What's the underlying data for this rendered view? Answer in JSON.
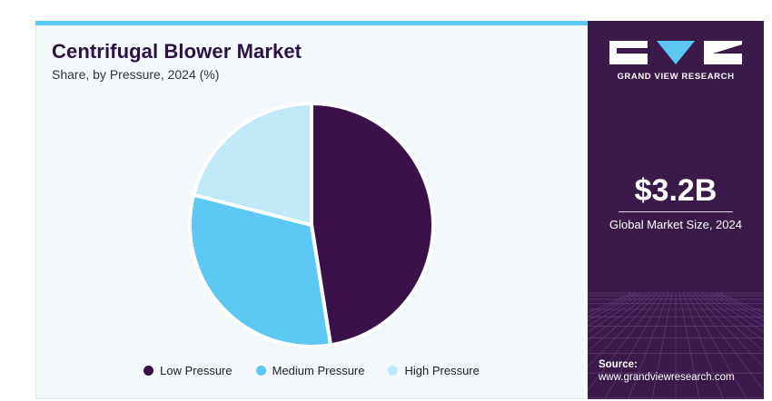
{
  "header": {
    "title": "Centrifugal Blower Market",
    "subtitle": "Share, by Pressure, 2024 (%)"
  },
  "chart_data": {
    "type": "pie",
    "title": "Centrifugal Blower Market",
    "subtitle": "Share, by Pressure, 2024 (%)",
    "categories": [
      "Low Pressure",
      "Medium Pressure",
      "High Pressure"
    ],
    "values": [
      47.5,
      31.5,
      21.0
    ],
    "colors": [
      "#3a1149",
      "#5ec8f4",
      "#bfe8f9"
    ],
    "start_angle": "top, clockwise",
    "legend_position": "bottom"
  },
  "sidebar": {
    "brand": "GRAND VIEW RESEARCH",
    "market_size": "$3.2B",
    "market_size_label": "Global Market Size, 2024",
    "source_heading": "Source:",
    "source_url": "www.grandviewresearch.com"
  },
  "colors": {
    "sidebar_bg": "#3a1a4a",
    "accent": "#5ec8f4",
    "title": "#2d1245"
  }
}
